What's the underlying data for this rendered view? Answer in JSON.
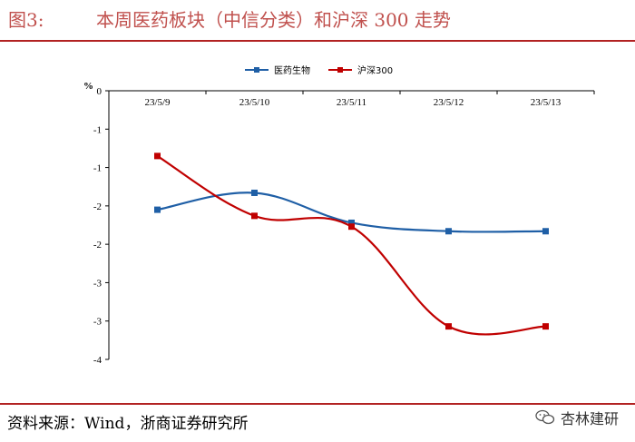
{
  "figure": {
    "label": "图3:",
    "title": "本周医药板块（中信分类）和沪深 300 走势"
  },
  "source": "资料来源：Wind，浙商证券研究所",
  "watermark": {
    "text": "杏林建研",
    "icon": "wechat-icon"
  },
  "colors": {
    "title": "#c0504d",
    "rule": "#b22222"
  },
  "chart_data": {
    "type": "line",
    "title": "",
    "xlabel": "",
    "ylabel": "%",
    "categories": [
      "23/5/9",
      "23/5/10",
      "23/5/11",
      "23/5/12",
      "23/5/13"
    ],
    "ylim": [
      -3.5,
      0
    ],
    "yticks": [
      0,
      -0.5,
      -1,
      -1.5,
      -2,
      -2.5,
      -3,
      -3.5
    ],
    "ytick_labels": [
      "0",
      "-1",
      "-1",
      "-2",
      "-2",
      "-3",
      "-3",
      "-4"
    ],
    "legend_position": "top",
    "series": [
      {
        "name": "医药生物",
        "color": "#1f5fa6",
        "marker": "square",
        "values": [
          -1.55,
          -1.33,
          -1.72,
          -1.83,
          -1.83
        ]
      },
      {
        "name": "沪深300",
        "color": "#c00000",
        "marker": "square",
        "values": [
          -0.85,
          -1.63,
          -1.77,
          -3.07,
          -3.07
        ]
      }
    ]
  }
}
